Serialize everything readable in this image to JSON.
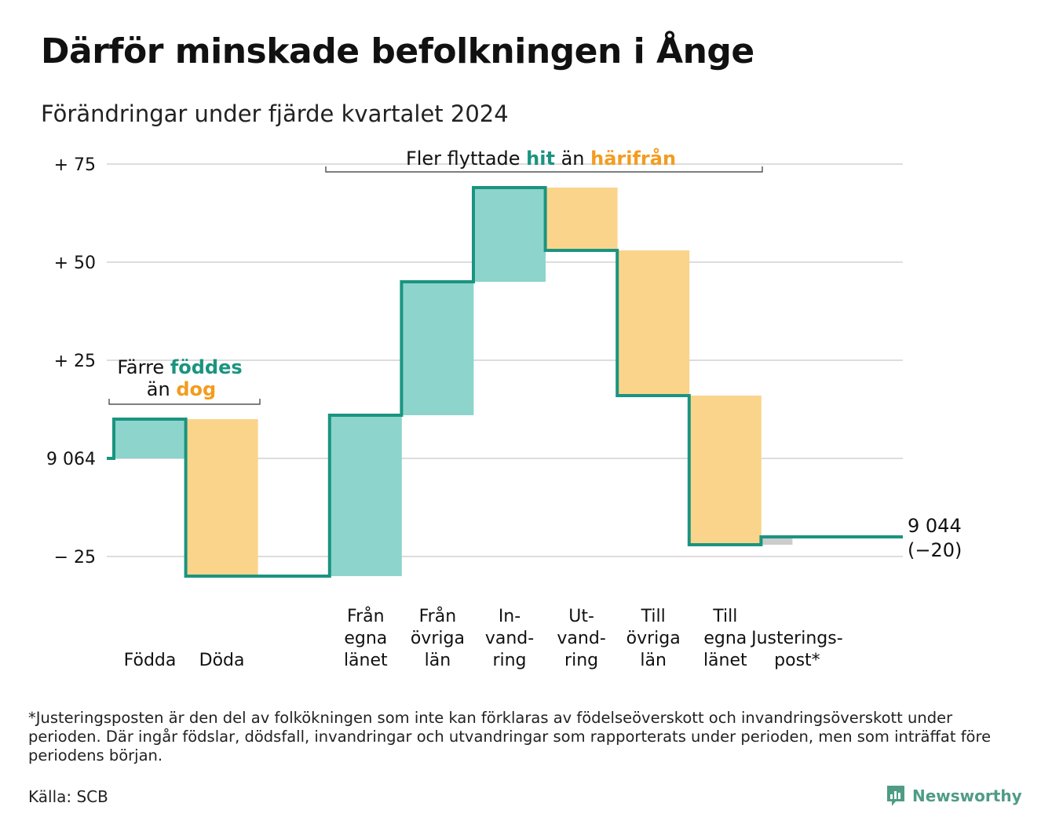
{
  "title": "Därför minskade befolkningen i Ånge",
  "subtitle": "Förändringar under fjärde kvartalet 2024",
  "footnote": "*Justeringsposten är den del av folkökningen som inte kan förklaras av födelseöverskott och invandringsöverskott under perioden. Där ingår födslar, dödsfall, invandringar och utvandringar som rapporterats under perioden, men som inträffat före periodens början.",
  "source": "Källa: SCB",
  "brand": "Newsworthy",
  "colors": {
    "inflow": "#8dd4cc",
    "outflow": "#fad48b",
    "adjustment": "#cccccc",
    "line": "#1a9480",
    "accent_teal": "#1a9480",
    "accent_orange": "#f39c1f",
    "grid": "#dddddd"
  },
  "chart_data": {
    "type": "waterfall",
    "start_population": 9064,
    "end_population": 9044,
    "end_label": "9 044",
    "end_change_label": "(−20)",
    "ylim": [
      -30,
      78
    ],
    "yticks": [
      {
        "value": 75,
        "label": "+ 75"
      },
      {
        "value": 50,
        "label": "+ 50"
      },
      {
        "value": 25,
        "label": "+ 25"
      },
      {
        "value": 0,
        "label": "9 064"
      },
      {
        "value": -25,
        "label": "− 25"
      }
    ],
    "steps": [
      {
        "label": [
          "Födda"
        ],
        "change": 10,
        "kind": "in"
      },
      {
        "label": [
          "Döda"
        ],
        "change": -40,
        "kind": "out"
      },
      {
        "label": [
          "Från",
          "egna",
          "länet"
        ],
        "change": 41,
        "kind": "in"
      },
      {
        "label": [
          "Från",
          "övriga",
          "län"
        ],
        "change": 34,
        "kind": "in"
      },
      {
        "label": [
          "In-",
          "vand-",
          "ring"
        ],
        "change": 24,
        "kind": "in"
      },
      {
        "label": [
          "Ut-",
          "vand-",
          "ring"
        ],
        "change": -16,
        "kind": "out"
      },
      {
        "label": [
          "Till",
          "övriga",
          "län"
        ],
        "change": -37,
        "kind": "out"
      },
      {
        "label": [
          "Till",
          "egna",
          "länet"
        ],
        "change": -38,
        "kind": "out"
      },
      {
        "label": [
          "Justerings-",
          "post*"
        ],
        "change": 2,
        "kind": "adj"
      }
    ],
    "annotations": {
      "births": {
        "line1_pre": "Färre ",
        "line1_hl": "föddes",
        "line2_pre": "än ",
        "line2_hl": "dog"
      },
      "migration": {
        "pre": "Fler flyttade ",
        "hl1": "hit",
        "mid": " än ",
        "hl2": "härifrån"
      }
    },
    "grid": true
  }
}
